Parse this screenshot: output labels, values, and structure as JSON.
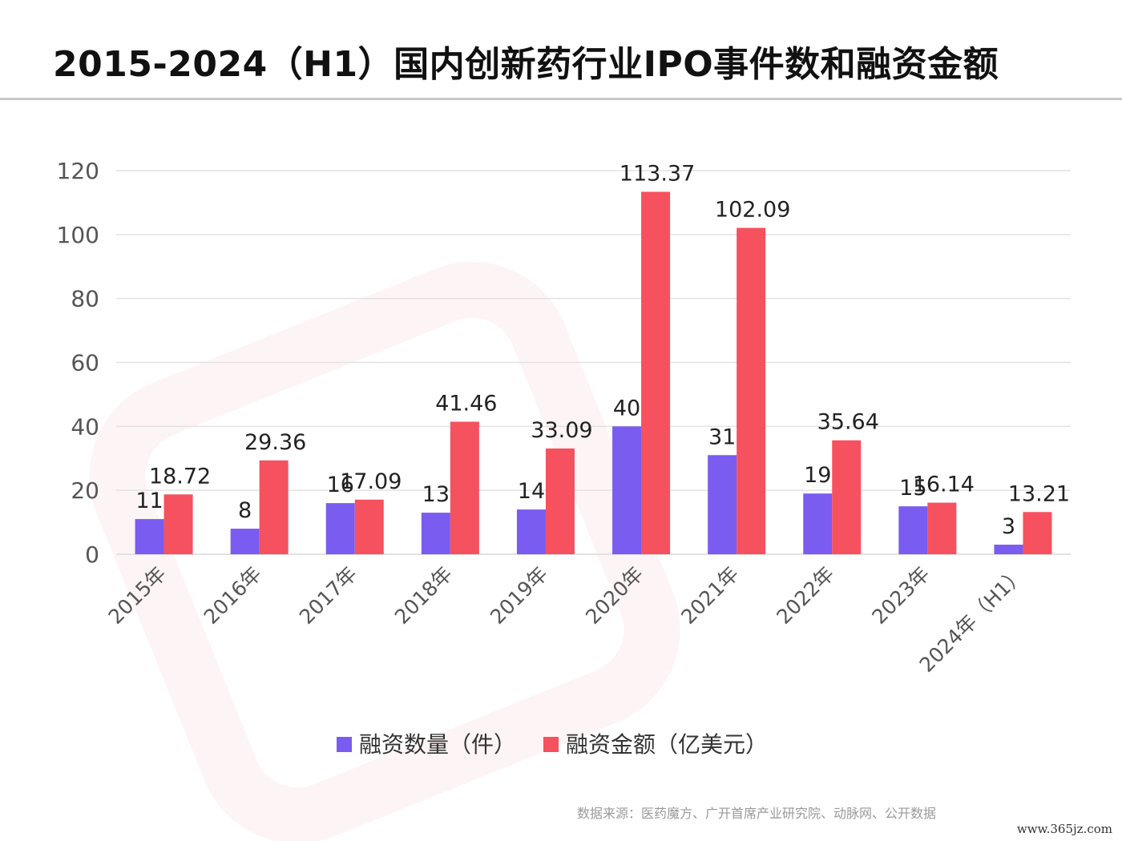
{
  "title": "2015-2024（H1）国内创新药行业IPO事件数和融资金额",
  "source": "数据来源：医药魔方、广开首席产业研究院、动脉网、公开数据",
  "site": "www.365jz.com",
  "colors": {
    "count": "#7B5CF0",
    "amount": "#F5515F",
    "grid": "#e2e2e2",
    "axis_text": "#555555"
  },
  "chart_data": {
    "type": "bar",
    "title": "2015-2024（H1）国内创新药行业IPO事件数和融资金额",
    "categories": [
      "2015年",
      "2016年",
      "2017年",
      "2018年",
      "2019年",
      "2020年",
      "2021年",
      "2022年",
      "2023年",
      "2024年（H1）"
    ],
    "series": [
      {
        "name": "融资数量（件）",
        "values": [
          11,
          8,
          16,
          13,
          14,
          40,
          31,
          19,
          15,
          3
        ],
        "labels": [
          "11",
          "8",
          "16",
          "13",
          "14",
          "40",
          "31",
          "19",
          "15",
          "3"
        ]
      },
      {
        "name": "融资金额（亿美元）",
        "values": [
          18.72,
          29.36,
          17.09,
          41.46,
          33.09,
          113.37,
          102.09,
          35.64,
          16.14,
          13.21
        ],
        "labels": [
          "18.72",
          "29.36",
          "17.09",
          "41.46",
          "33.09",
          "113.37",
          "102.09",
          "35.64",
          "16.14",
          "13.21"
        ]
      }
    ],
    "yticks": [
      "0",
      "20",
      "40",
      "60",
      "80",
      "100",
      "120"
    ],
    "ylim": [
      0,
      120
    ],
    "xlabel": "",
    "ylabel": "",
    "grid": true,
    "legend_position": "bottom-center"
  }
}
